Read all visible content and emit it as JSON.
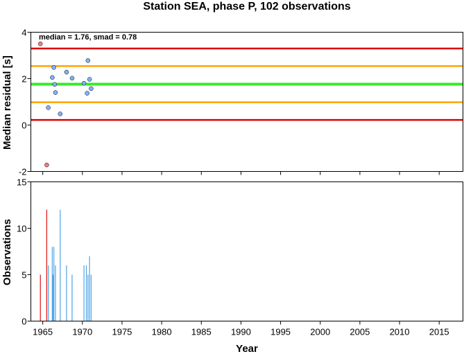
{
  "colors": {
    "median_line": "#33ee22",
    "band_1smad": "#ffa500",
    "band_2smad": "#dd0000",
    "point_fill": "#7fb2ff",
    "point_outlier_fill": "#f08080",
    "bar_normal": "#4da3e6",
    "bar_outlier": "#dd1111"
  },
  "chart_data": [
    {
      "type": "scatter",
      "title": "Station SEA, phase P, 102 observations",
      "ylabel": "Median residual [s]",
      "annotation": "median = 1.76, smad = 0.78",
      "xlim": [
        1963.5,
        2018.0
      ],
      "ylim": [
        -2,
        4
      ],
      "yticks": [
        "4",
        "2",
        "0",
        "-2"
      ],
      "ytick_values": [
        4,
        2,
        0,
        -2
      ],
      "grid": false,
      "reference_lines": [
        {
          "label": "median",
          "y": 1.76,
          "color": "#33ee22"
        },
        {
          "label": "median+1smad",
          "y": 2.54,
          "color": "#ffa500"
        },
        {
          "label": "median-1smad",
          "y": 0.98,
          "color": "#ffa500"
        },
        {
          "label": "median+2smad",
          "y": 3.3,
          "color": "#dd0000"
        },
        {
          "label": "median-2smad",
          "y": 0.22,
          "color": "#dd0000"
        }
      ],
      "points": [
        {
          "x": 1964.7,
          "y": 3.5,
          "outlier": true
        },
        {
          "x": 1965.5,
          "y": -1.72,
          "outlier": true
        },
        {
          "x": 1965.7,
          "y": 0.75,
          "outlier": false
        },
        {
          "x": 1966.2,
          "y": 2.05,
          "outlier": false
        },
        {
          "x": 1966.4,
          "y": 2.48,
          "outlier": false
        },
        {
          "x": 1966.5,
          "y": 1.75,
          "outlier": false
        },
        {
          "x": 1966.6,
          "y": 1.4,
          "outlier": false
        },
        {
          "x": 1967.2,
          "y": 0.48,
          "outlier": false
        },
        {
          "x": 1968.0,
          "y": 2.28,
          "outlier": false
        },
        {
          "x": 1968.7,
          "y": 2.02,
          "outlier": false
        },
        {
          "x": 1970.2,
          "y": 1.8,
          "outlier": false
        },
        {
          "x": 1970.6,
          "y": 1.37,
          "outlier": false
        },
        {
          "x": 1970.7,
          "y": 2.78,
          "outlier": false
        },
        {
          "x": 1970.9,
          "y": 1.97,
          "outlier": false
        },
        {
          "x": 1971.1,
          "y": 1.57,
          "outlier": false
        }
      ]
    },
    {
      "type": "bar",
      "ylabel": "Observations",
      "xlabel": "Year",
      "xlim": [
        1963.5,
        2018.0
      ],
      "ylim": [
        0,
        15
      ],
      "yticks": [
        "15",
        "10",
        "5",
        "0"
      ],
      "ytick_values": [
        15,
        10,
        5,
        0
      ],
      "xticks": [
        "1965",
        "1970",
        "1975",
        "1980",
        "1985",
        "1990",
        "1995",
        "2000",
        "2005",
        "2010",
        "2015"
      ],
      "xtick_values": [
        1965,
        1970,
        1975,
        1980,
        1985,
        1990,
        1995,
        2000,
        2005,
        2010,
        2015
      ],
      "grid": false,
      "bars": [
        {
          "x": 1964.7,
          "value": 5,
          "outlier": true
        },
        {
          "x": 1965.5,
          "value": 12,
          "outlier": true
        },
        {
          "x": 1965.7,
          "value": 6,
          "outlier": false
        },
        {
          "x": 1966.2,
          "value": 8,
          "outlier": false
        },
        {
          "x": 1966.3,
          "value": 5,
          "outlier": false
        },
        {
          "x": 1966.4,
          "value": 8,
          "outlier": false
        },
        {
          "x": 1966.6,
          "value": 6,
          "outlier": false
        },
        {
          "x": 1967.2,
          "value": 12,
          "outlier": false
        },
        {
          "x": 1968.0,
          "value": 6,
          "outlier": false
        },
        {
          "x": 1968.7,
          "value": 5,
          "outlier": false
        },
        {
          "x": 1970.2,
          "value": 6,
          "outlier": false
        },
        {
          "x": 1970.5,
          "value": 6,
          "outlier": false
        },
        {
          "x": 1970.7,
          "value": 5,
          "outlier": false
        },
        {
          "x": 1970.9,
          "value": 7,
          "outlier": false
        },
        {
          "x": 1971.1,
          "value": 5,
          "outlier": false
        }
      ]
    }
  ]
}
